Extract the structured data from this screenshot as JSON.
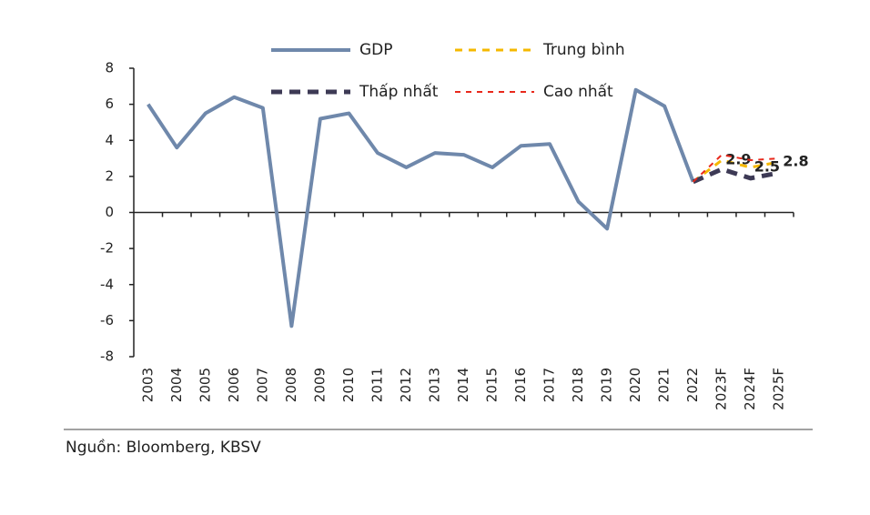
{
  "chart_data": {
    "type": "line",
    "categories": [
      "2003",
      "2004",
      "2005",
      "2006",
      "2007",
      "2008",
      "2009",
      "2010",
      "2011",
      "2012",
      "2013",
      "2014",
      "2015",
      "2016",
      "2017",
      "2018",
      "2019",
      "2020",
      "2021",
      "2022",
      "2023F",
      "2024F",
      "2025F"
    ],
    "series": [
      {
        "name": "GDP",
        "color": "#6f88ab",
        "dash": "solid",
        "width": 4,
        "values": [
          6.0,
          3.6,
          5.5,
          6.4,
          5.8,
          -6.3,
          5.2,
          5.5,
          3.3,
          2.5,
          3.3,
          3.2,
          2.5,
          3.7,
          3.8,
          0.6,
          -0.9,
          6.8,
          5.9,
          1.7,
          null,
          null,
          null
        ]
      },
      {
        "name": "Trung bình",
        "color": "#f5b800",
        "dash": "8 7",
        "width": 3,
        "values": [
          null,
          null,
          null,
          null,
          null,
          null,
          null,
          null,
          null,
          null,
          null,
          null,
          null,
          null,
          null,
          null,
          null,
          null,
          null,
          1.7,
          2.9,
          2.5,
          2.8
        ],
        "value_labels": [
          null,
          null,
          null,
          null,
          null,
          null,
          null,
          null,
          null,
          null,
          null,
          null,
          null,
          null,
          null,
          null,
          null,
          null,
          null,
          null,
          "2.9",
          "2.5",
          "2.8"
        ]
      },
      {
        "name": "Thấp nhất",
        "color": "#3d3a55",
        "dash": "12 8",
        "width": 5,
        "values": [
          null,
          null,
          null,
          null,
          null,
          null,
          null,
          null,
          null,
          null,
          null,
          null,
          null,
          null,
          null,
          null,
          null,
          null,
          null,
          1.7,
          2.4,
          1.9,
          2.2
        ]
      },
      {
        "name": "Cao nhất",
        "color": "#e8291c",
        "dash": "6 6",
        "width": 2,
        "values": [
          null,
          null,
          null,
          null,
          null,
          null,
          null,
          null,
          null,
          null,
          null,
          null,
          null,
          null,
          null,
          null,
          null,
          null,
          null,
          1.7,
          3.2,
          2.9,
          3.0
        ]
      }
    ],
    "ylim": [
      -8,
      8
    ],
    "yticks": [
      -8,
      -6,
      -4,
      -2,
      0,
      2,
      4,
      6,
      8
    ],
    "grid": false,
    "source": "Nguồn: Bloomberg, KBSV"
  }
}
